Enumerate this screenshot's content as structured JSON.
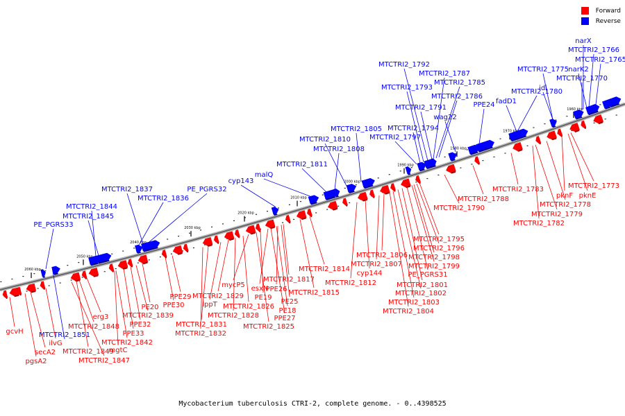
{
  "legend": {
    "forward_label": "Forward",
    "reverse_label": "Reverse",
    "forward_color": "#ff0000",
    "reverse_color": "#0000ff"
  },
  "caption": "Mycobacterium tuberculosis CTRI-2, complete genome. - 0..4398525",
  "scale_ticks": [
    "1960 kbp",
    "1970 kbp",
    "1980 kbp",
    "1990 kbp",
    "2000 kbp",
    "2010 kbp",
    "2020 kbp",
    "2030 kbp",
    "2040 kbp",
    "2050 kbp",
    "2060 kbp"
  ],
  "reverse_genes": [
    "narX",
    "MTCTRI2_1766",
    "MTCTRI2_1765",
    "narK2",
    "MTCTRI2_1770",
    "MTCTRI2_1775",
    "idi",
    "MTCTRI2_1780",
    "fadD1",
    "MTCTRI2_1792",
    "MTCTRI2_1787",
    "MTCTRI2_1785",
    "MTCTRI2_1793",
    "MTCTRI2_1786",
    "PPE24",
    "MTCTRI2_1791",
    "wag22",
    "MTCTRI2_1794",
    "MTCTRI2_1797",
    "MTCTRI2_1805",
    "MTCTRI2_1810",
    "MTCTRI2_1808",
    "MTCTRI2_1811",
    "malQ",
    "cyp143",
    "PE_PGRS32",
    "MTCTRI2_1837",
    "MTCTRI2_1836",
    "MTCTRI2_1844",
    "MTCTRI2_1845",
    "PE_PGRS33",
    "MTCTRI2_1851"
  ],
  "forward_genes": [
    "MTCTRI2_1773",
    "pknF",
    "pknE",
    "MTCTRI2_1783",
    "MTCTRI2_1778",
    "MTCTRI2_1779",
    "MTCTRI2_1782",
    "MTCTRI2_1788",
    "MTCTRI2_1790",
    "MTCTRI2_1795",
    "MTCTRI2_1796",
    "MTCTRI2_1798",
    "MTCTRI2_1799",
    "PE_PGRS31",
    "MTCTRI2_1801",
    "MTCTRI2_1802",
    "MTCTRI2_1803",
    "MTCTRI2_1804",
    "MTCTRI2_1806",
    "MTCTRI2_1807",
    "cyp144",
    "MTCTRI2_1812",
    "MTCTRI2_1814",
    "MTCTRI2_1815",
    "MTCTRI2_1817",
    "PPE26",
    "PE25",
    "PE18",
    "PPE27",
    "esxN",
    "PE19",
    "MTCTRI2_1825",
    "mycP5",
    "MTCTRI2_1826",
    "MTCTRI2_1828",
    "MTCTRI2_1829",
    "lppT",
    "MTCTRI2_1831",
    "MTCTRI2_1832",
    "PPE29",
    "PPE30",
    "PE20",
    "MTCTRI2_1839",
    "PPE32",
    "PPE33",
    "MTCTRI2_1842",
    "mgtC",
    "erg3",
    "MTCTRI2_1848",
    "MTCTRI2_1849",
    "MTCTRI2_1847",
    "ilvG",
    "secA2",
    "pgsA2",
    "gcvH"
  ]
}
